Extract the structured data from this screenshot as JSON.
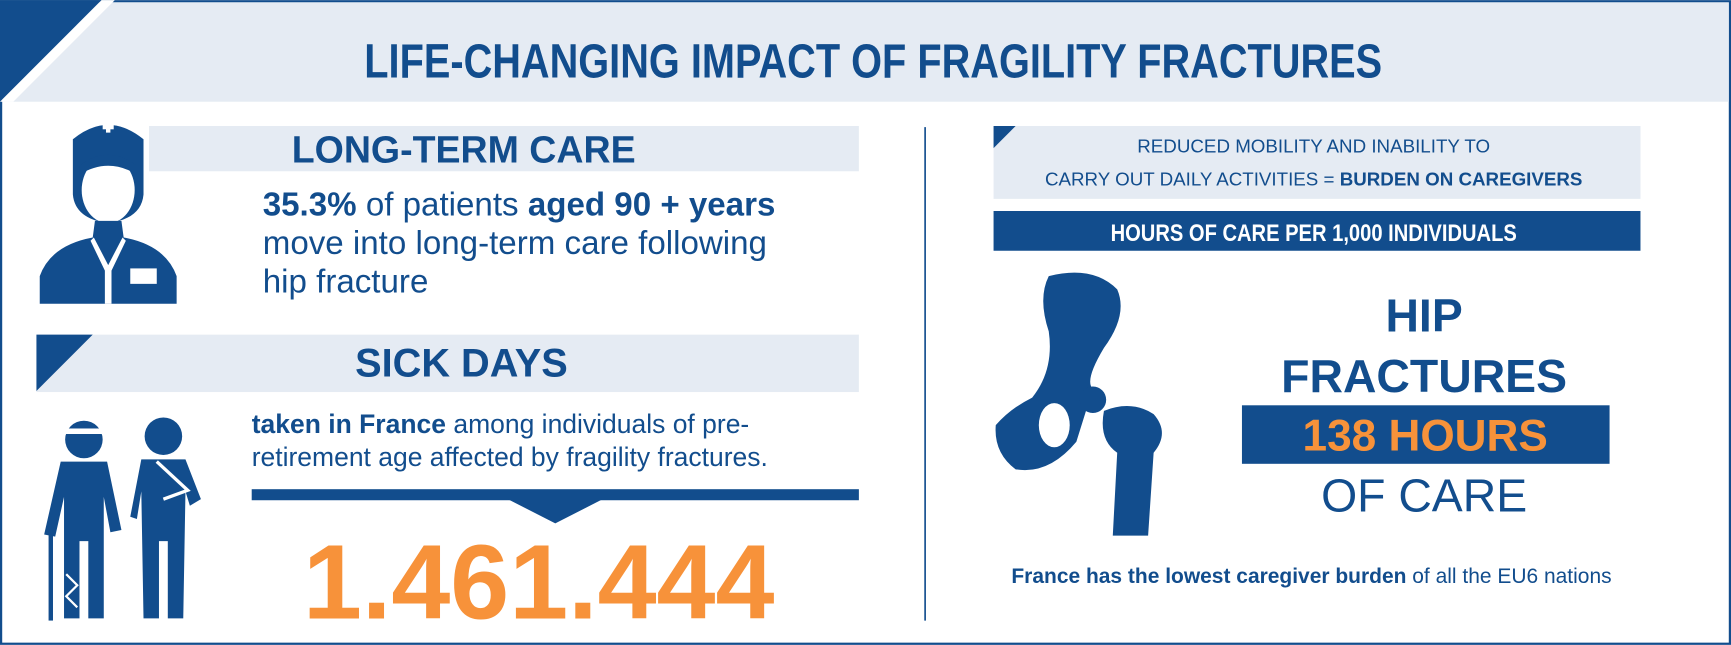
{
  "title": "LIFE-CHANGING IMPACT OF FRAGILITY FRACTURES",
  "long_term_care": {
    "heading": "LONG-TERM CARE",
    "line1": [
      "35.3%",
      " of patients ",
      "aged 90 + years"
    ],
    "line2": "move into long-term care following",
    "line3": "hip fracture"
  },
  "sick_days": {
    "heading": "SICK DAYS",
    "line1": [
      "taken in France",
      " among individuals of pre-"
    ],
    "line2": "retirement age affected by fragility fractures.",
    "number": "1.461.444"
  },
  "caregivers": {
    "intro_line1": "REDUCED MOBILITY AND INABILITY TO",
    "intro_line2": [
      "CARRY OUT DAILY ACTIVITIES = ",
      "BURDEN ON CAREGIVERS"
    ],
    "bar_label": "HOURS OF CARE PER 1,000 INDIVIDUALS",
    "hip": "HIP",
    "fractures": "FRACTURES",
    "hours": "138 HOURS",
    "of_care": "OF CARE",
    "footnote": [
      "France has the lowest caregiver burden",
      " of all the EU6 nations"
    ]
  }
}
